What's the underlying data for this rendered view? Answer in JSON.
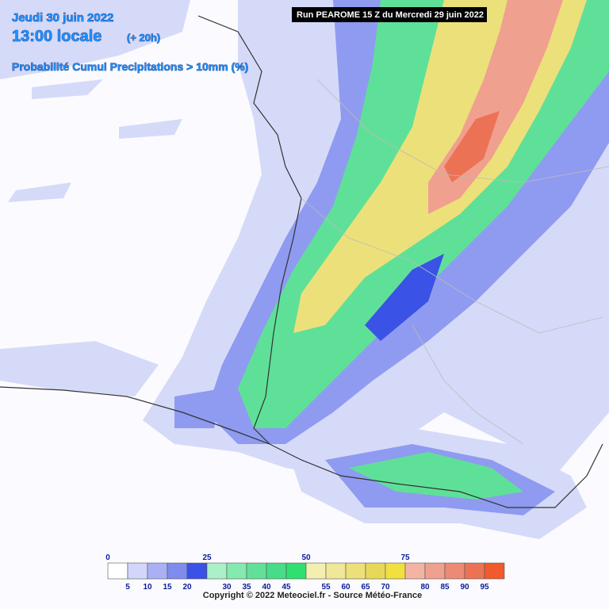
{
  "header": {
    "date": "Jeudi 30 juin 2022",
    "time": "13:00 locale",
    "offset": "(+ 20h)",
    "parameter": "Probabilité Cumul Precipitations > 10mm (%)",
    "run": "Run PEAROME 15 Z du Mercredi 29 juin 2022"
  },
  "legend": {
    "colors": [
      "#ffffff",
      "#d2d6fa",
      "#a9b1f4",
      "#7f8bee",
      "#3b52e6",
      "#aaf0c8",
      "#84eab0",
      "#62e09a",
      "#48dc88",
      "#2fe070",
      "#f4eeb0",
      "#f0e898",
      "#ece07a",
      "#e8d85a",
      "#f0e040",
      "#f4b4a4",
      "#f0a08e",
      "#ec8a74",
      "#ec7256",
      "#f05a2c"
    ],
    "top_labels": [
      0,
      25,
      50,
      75
    ],
    "bottom_labels": [
      5,
      10,
      15,
      20,
      30,
      35,
      40,
      45,
      55,
      60,
      65,
      70,
      80,
      85,
      90,
      95
    ]
  },
  "copyright": "Copyright © 2022 Meteociel.fr - Source Météo-France"
}
